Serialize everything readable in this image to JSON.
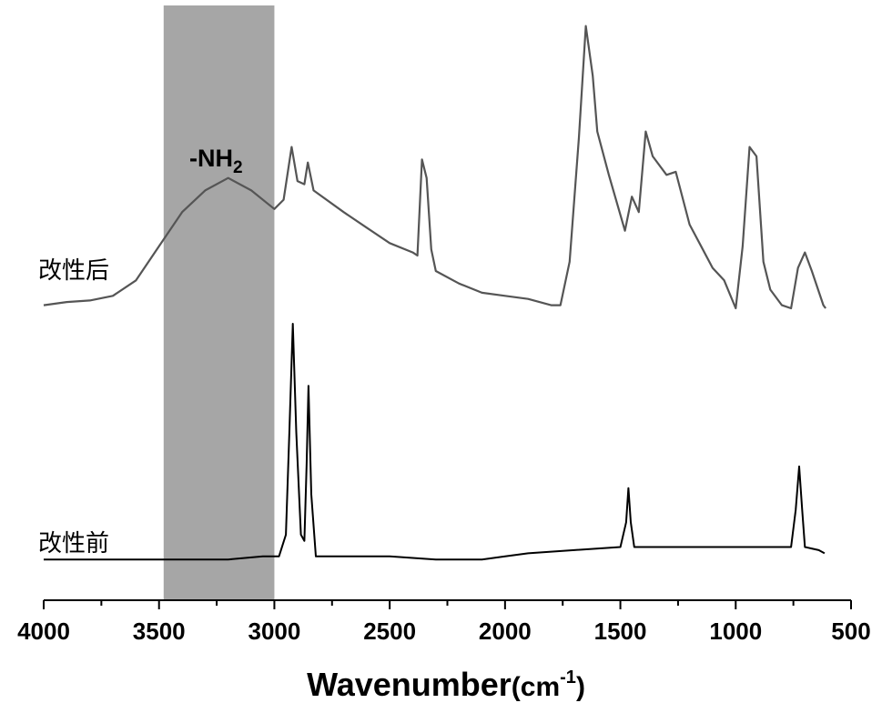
{
  "chart_data": {
    "type": "line",
    "xlabel": "Wavenumber",
    "xlabel_unit": "(cm",
    "xlabel_unit_sup": "-1",
    "xlabel_unit_close": ")",
    "xlim": [
      4000,
      500
    ],
    "x_reversed": true,
    "x_ticks": [
      4000,
      3500,
      3000,
      2500,
      2000,
      1500,
      1000,
      500
    ],
    "y_axis_visible": false,
    "grid": false,
    "highlight_band": {
      "x_range": [
        3480,
        3000
      ],
      "label_main": "-NH",
      "label_sub": "2",
      "color": "#a6a6a6"
    },
    "series": [
      {
        "name": "改性后",
        "color": "#555555",
        "points": [
          [
            4000,
            0.06
          ],
          [
            3900,
            0.07
          ],
          [
            3800,
            0.075
          ],
          [
            3700,
            0.09
          ],
          [
            3600,
            0.14
          ],
          [
            3500,
            0.25
          ],
          [
            3400,
            0.36
          ],
          [
            3300,
            0.43
          ],
          [
            3200,
            0.47
          ],
          [
            3100,
            0.43
          ],
          [
            3000,
            0.37
          ],
          [
            2960,
            0.4
          ],
          [
            2925,
            0.57
          ],
          [
            2900,
            0.46
          ],
          [
            2870,
            0.45
          ],
          [
            2855,
            0.52
          ],
          [
            2830,
            0.43
          ],
          [
            2700,
            0.36
          ],
          [
            2600,
            0.31
          ],
          [
            2500,
            0.26
          ],
          [
            2400,
            0.23
          ],
          [
            2380,
            0.22
          ],
          [
            2360,
            0.53
          ],
          [
            2340,
            0.47
          ],
          [
            2320,
            0.24
          ],
          [
            2300,
            0.17
          ],
          [
            2200,
            0.13
          ],
          [
            2100,
            0.1
          ],
          [
            2000,
            0.09
          ],
          [
            1900,
            0.08
          ],
          [
            1800,
            0.06
          ],
          [
            1760,
            0.06
          ],
          [
            1720,
            0.2
          ],
          [
            1680,
            0.6
          ],
          [
            1650,
            0.96
          ],
          [
            1620,
            0.8
          ],
          [
            1600,
            0.62
          ],
          [
            1550,
            0.48
          ],
          [
            1480,
            0.3
          ],
          [
            1450,
            0.41
          ],
          [
            1420,
            0.36
          ],
          [
            1390,
            0.62
          ],
          [
            1360,
            0.54
          ],
          [
            1300,
            0.48
          ],
          [
            1260,
            0.49
          ],
          [
            1200,
            0.32
          ],
          [
            1150,
            0.25
          ],
          [
            1100,
            0.18
          ],
          [
            1050,
            0.14
          ],
          [
            1000,
            0.05
          ],
          [
            970,
            0.25
          ],
          [
            940,
            0.57
          ],
          [
            910,
            0.54
          ],
          [
            880,
            0.2
          ],
          [
            850,
            0.11
          ],
          [
            800,
            0.06
          ],
          [
            760,
            0.05
          ],
          [
            730,
            0.18
          ],
          [
            700,
            0.23
          ],
          [
            670,
            0.17
          ],
          [
            620,
            0.06
          ],
          [
            610,
            0.05
          ]
        ]
      },
      {
        "name": "改性前",
        "color": "#000000",
        "points": [
          [
            4000,
            -0.76
          ],
          [
            3800,
            -0.76
          ],
          [
            3600,
            -0.76
          ],
          [
            3400,
            -0.76
          ],
          [
            3200,
            -0.76
          ],
          [
            3050,
            -0.75
          ],
          [
            2980,
            -0.75
          ],
          [
            2950,
            -0.68
          ],
          [
            2935,
            -0.35
          ],
          [
            2920,
            0.0
          ],
          [
            2905,
            -0.35
          ],
          [
            2885,
            -0.68
          ],
          [
            2870,
            -0.7
          ],
          [
            2860,
            -0.45
          ],
          [
            2852,
            -0.2
          ],
          [
            2840,
            -0.55
          ],
          [
            2820,
            -0.75
          ],
          [
            2700,
            -0.75
          ],
          [
            2500,
            -0.75
          ],
          [
            2300,
            -0.76
          ],
          [
            2100,
            -0.76
          ],
          [
            2000,
            -0.75
          ],
          [
            1900,
            -0.74
          ],
          [
            1700,
            -0.73
          ],
          [
            1500,
            -0.72
          ],
          [
            1475,
            -0.64
          ],
          [
            1465,
            -0.53
          ],
          [
            1455,
            -0.64
          ],
          [
            1440,
            -0.72
          ],
          [
            1200,
            -0.72
          ],
          [
            900,
            -0.72
          ],
          [
            760,
            -0.72
          ],
          [
            740,
            -0.6
          ],
          [
            725,
            -0.46
          ],
          [
            712,
            -0.6
          ],
          [
            700,
            -0.72
          ],
          [
            640,
            -0.73
          ],
          [
            615,
            -0.74
          ]
        ]
      }
    ]
  }
}
